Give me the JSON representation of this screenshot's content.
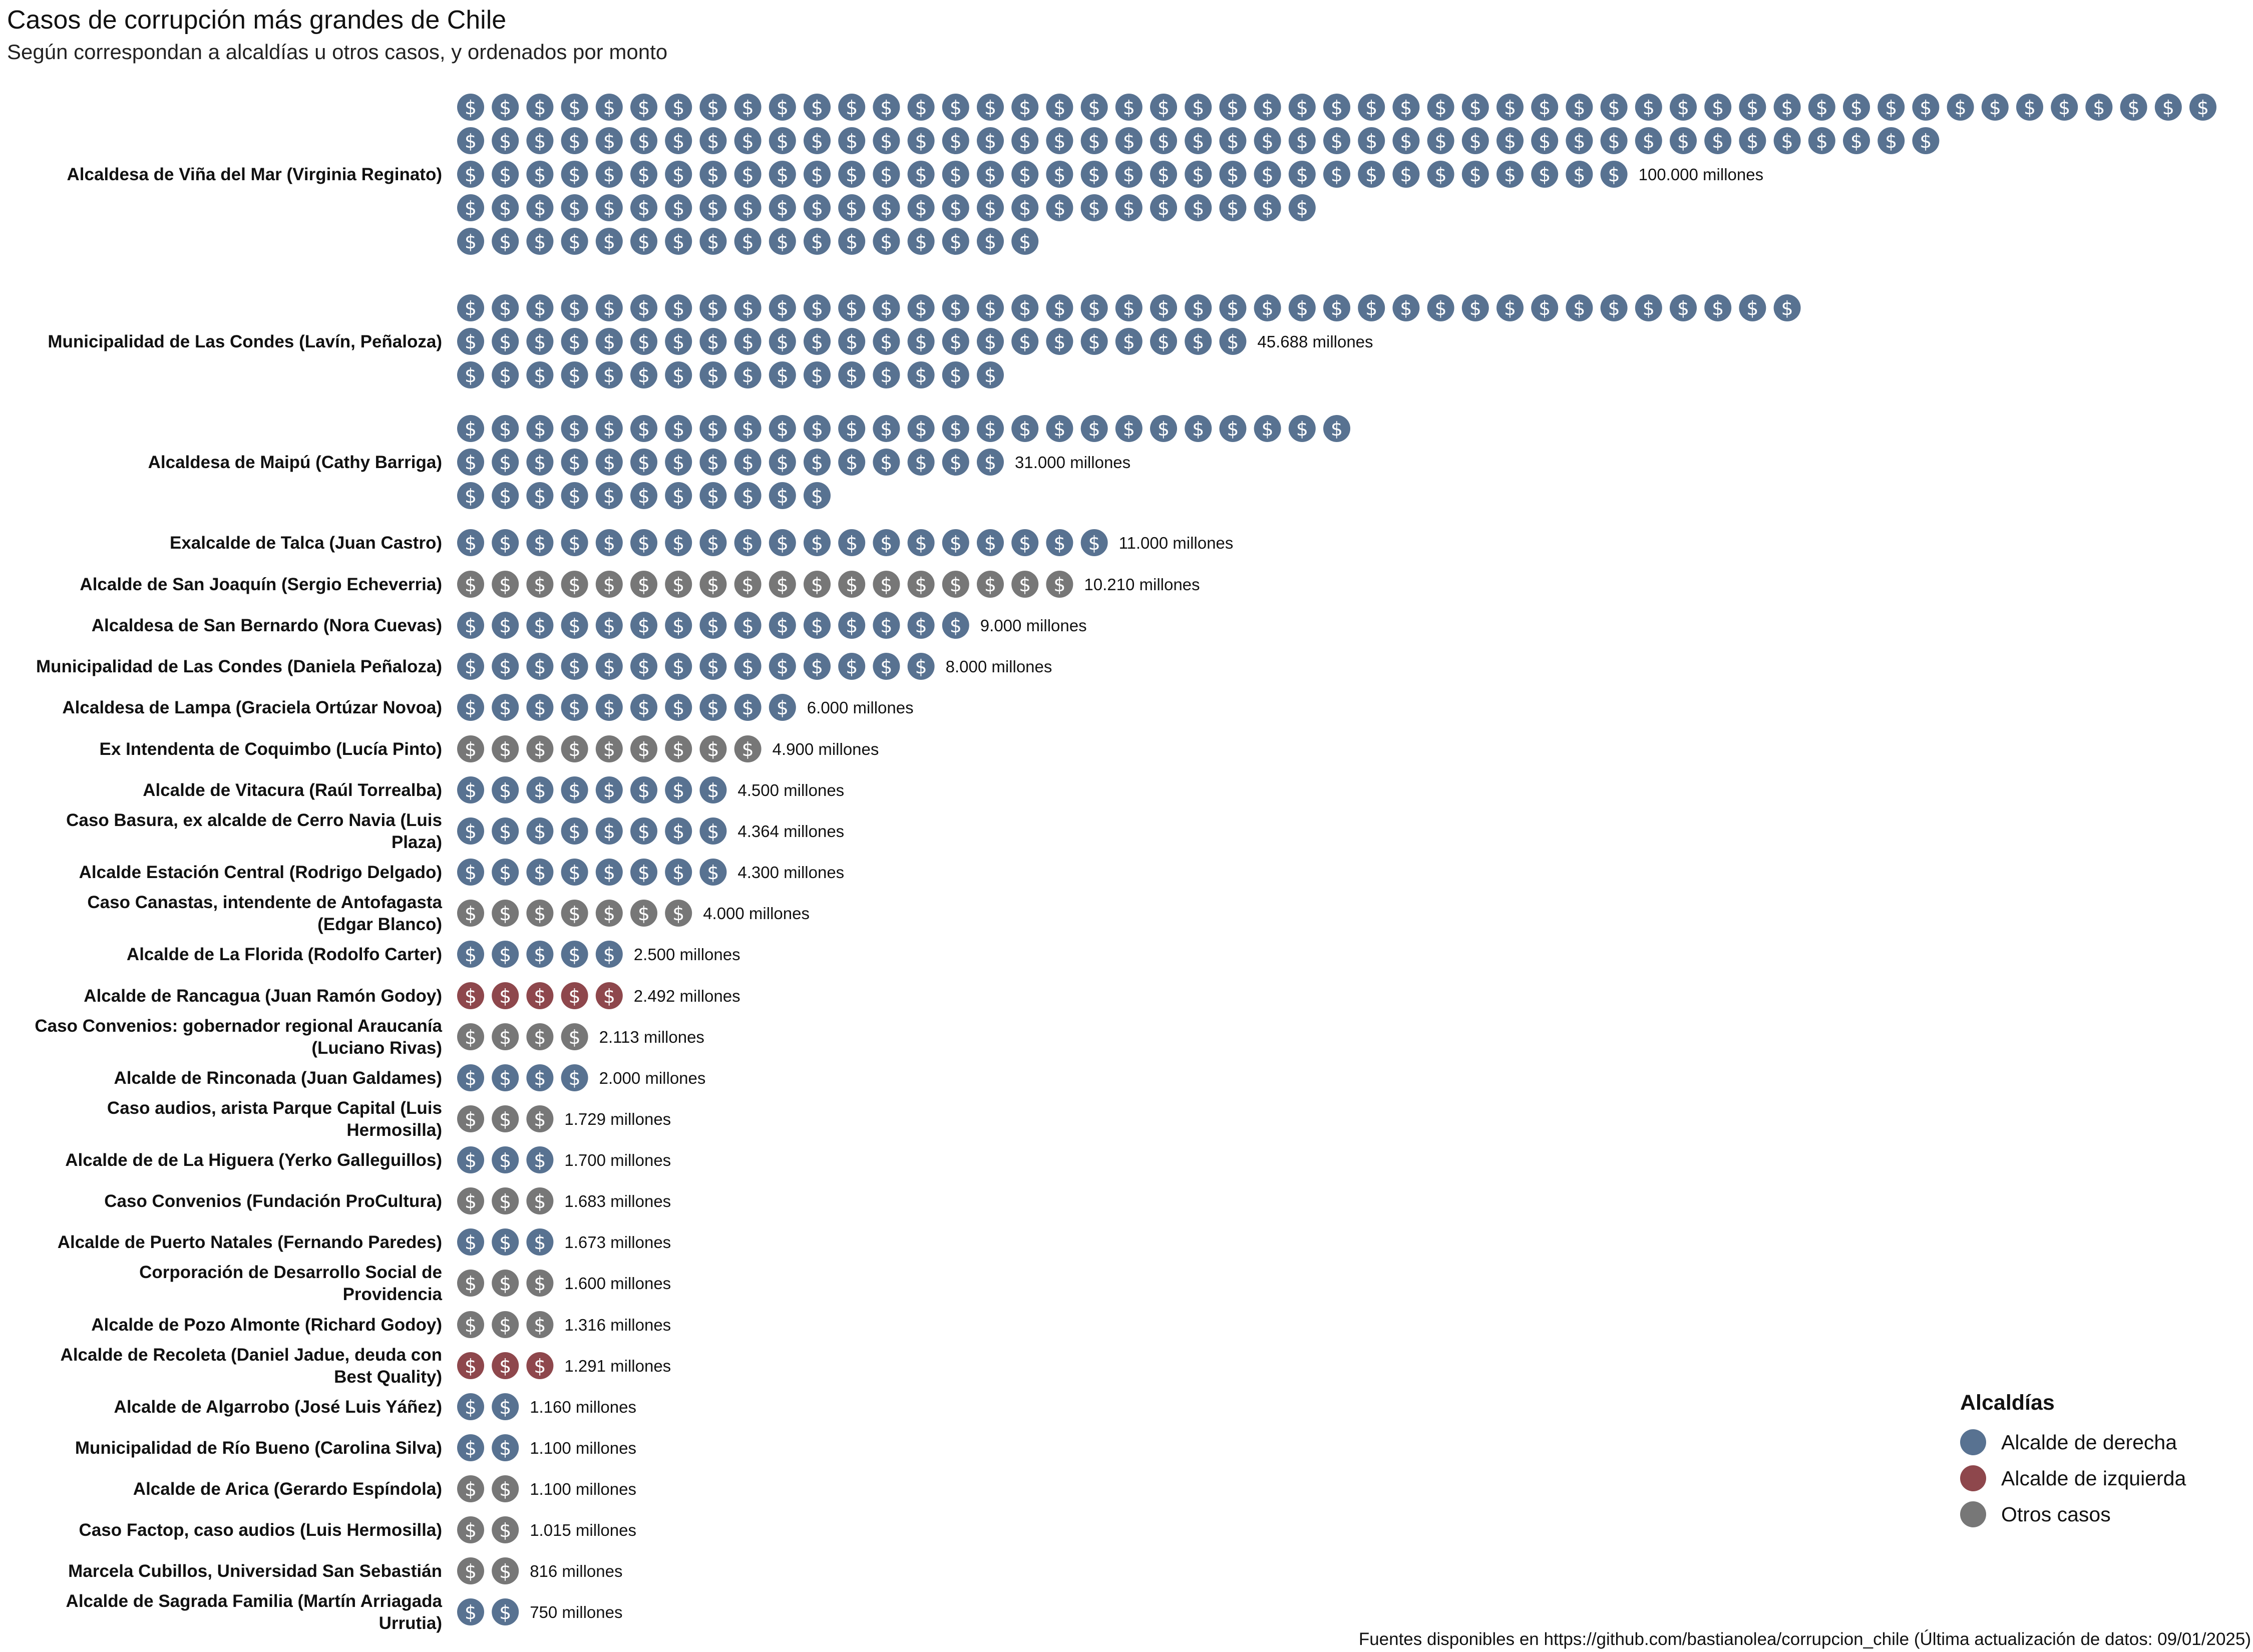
{
  "chart_data": {
    "type": "pictogram",
    "title": "Casos de corrupción más grandes de Chile",
    "subtitle": "Según correspondan a alcaldías u otros casos, y ordenados por monto",
    "caption": "Fuentes disponibles en https://github.com/bastianolea/corrupcion_chile (Última actualización de datos: 09/01/2025)",
    "legend": {
      "title": "Alcaldías",
      "position": "bottom-right",
      "entries": [
        {
          "key": "derecha",
          "label": "Alcalde de derecha",
          "color": "#587291"
        },
        {
          "key": "izquierda",
          "label": "Alcalde de izquierda",
          "color": "#8e474c"
        },
        {
          "key": "otros",
          "label": "Otros casos",
          "color": "#777777"
        }
      ]
    },
    "coin_symbol": "$",
    "rows": [
      {
        "label": "Alcaldesa de Viña del Mar (Virginia Reginato)",
        "value": 100000,
        "value_label": "100.000 millones",
        "group": "derecha",
        "coins": 204
      },
      {
        "label": "Municipalidad de Las Condes (Lavín, Peñaloza)",
        "value": 45688,
        "value_label": "45.688 millones",
        "group": "derecha",
        "coins": 94
      },
      {
        "label": "Alcaldesa de Maipú (Cathy Barriga)",
        "value": 31000,
        "value_label": "31.000 millones",
        "group": "derecha",
        "coins": 62
      },
      {
        "label": "Exalcalde de Talca (Juan Castro)",
        "value": 11000,
        "value_label": "11.000 millones",
        "group": "derecha",
        "coins": 19
      },
      {
        "label": "Alcalde de San Joaquín (Sergio Echeverria)",
        "value": 10210,
        "value_label": "10.210 millones",
        "group": "otros",
        "coins": 18
      },
      {
        "label": "Alcaldesa de San Bernardo (Nora Cuevas)",
        "value": 9000,
        "value_label": "9.000 millones",
        "group": "derecha",
        "coins": 15
      },
      {
        "label": "Municipalidad de Las Condes (Daniela Peñaloza)",
        "value": 8000,
        "value_label": "8.000 millones",
        "group": "derecha",
        "coins": 14
      },
      {
        "label": "Alcaldesa de Lampa (Graciela Ortúzar Novoa)",
        "value": 6000,
        "value_label": "6.000 millones",
        "group": "derecha",
        "coins": 10
      },
      {
        "label": "Ex Intendenta de Coquimbo (Lucía Pinto)",
        "value": 4900,
        "value_label": "4.900 millones",
        "group": "otros",
        "coins": 9
      },
      {
        "label": "Alcalde de Vitacura (Raúl Torrealba)",
        "value": 4500,
        "value_label": "4.500 millones",
        "group": "derecha",
        "coins": 8
      },
      {
        "label": "Caso Basura, ex alcalde de Cerro Navia (Luis Plaza)",
        "value": 4364,
        "value_label": "4.364 millones",
        "group": "derecha",
        "coins": 8
      },
      {
        "label": "Alcalde Estación Central (Rodrigo Delgado)",
        "value": 4300,
        "value_label": "4.300 millones",
        "group": "derecha",
        "coins": 8
      },
      {
        "label": "Caso Canastas, intendente de Antofagasta (Edgar Blanco)",
        "value": 4000,
        "value_label": "4.000 millones",
        "group": "otros",
        "coins": 7
      },
      {
        "label": "Alcalde de La Florida (Rodolfo Carter)",
        "value": 2500,
        "value_label": "2.500 millones",
        "group": "derecha",
        "coins": 5
      },
      {
        "label": "Alcalde de Rancagua (Juan Ramón Godoy)",
        "value": 2492,
        "value_label": "2.492 millones",
        "group": "izquierda",
        "coins": 5
      },
      {
        "label": "Caso Convenios: gobernador regional Araucanía (Luciano Rivas)",
        "value": 2113,
        "value_label": "2.113 millones",
        "group": "otros",
        "coins": 4
      },
      {
        "label": "Alcalde de Rinconada (Juan Galdames)",
        "value": 2000,
        "value_label": "2.000 millones",
        "group": "derecha",
        "coins": 4
      },
      {
        "label": "Caso audios, arista Parque Capital (Luis Hermosilla)",
        "value": 1729,
        "value_label": "1.729 millones",
        "group": "otros",
        "coins": 3
      },
      {
        "label": "Alcalde de de La Higuera (Yerko Galleguillos)",
        "value": 1700,
        "value_label": "1.700 millones",
        "group": "derecha",
        "coins": 3
      },
      {
        "label": "Caso Convenios (Fundación ProCultura)",
        "value": 1683,
        "value_label": "1.683 millones",
        "group": "otros",
        "coins": 3
      },
      {
        "label": "Alcalde de Puerto Natales (Fernando Paredes)",
        "value": 1673,
        "value_label": "1.673 millones",
        "group": "derecha",
        "coins": 3
      },
      {
        "label": "Corporación de Desarrollo Social de Providencia",
        "value": 1600,
        "value_label": "1.600 millones",
        "group": "otros",
        "coins": 3
      },
      {
        "label": "Alcalde de Pozo Almonte (Richard Godoy)",
        "value": 1316,
        "value_label": "1.316 millones",
        "group": "otros",
        "coins": 3
      },
      {
        "label": "Alcalde de Recoleta (Daniel Jadue, deuda con Best Quality)",
        "value": 1291,
        "value_label": "1.291 millones",
        "group": "izquierda",
        "coins": 3
      },
      {
        "label": "Alcalde de Algarrobo (José Luis Yáñez)",
        "value": 1160,
        "value_label": "1.160 millones",
        "group": "derecha",
        "coins": 2
      },
      {
        "label": "Municipalidad de Río Bueno (Carolina Silva)",
        "value": 1100,
        "value_label": "1.100 millones",
        "group": "derecha",
        "coins": 2
      },
      {
        "label": "Alcalde de Arica (Gerardo Espíndola)",
        "value": 1100,
        "value_label": "1.100 millones",
        "group": "otros",
        "coins": 2
      },
      {
        "label": "Caso Factop, caso audios (Luis Hermosilla)",
        "value": 1015,
        "value_label": "1.015 millones",
        "group": "otros",
        "coins": 2
      },
      {
        "label": "Marcela Cubillos, Universidad San Sebastián",
        "value": 816,
        "value_label": "816 millones",
        "group": "otros",
        "coins": 2
      },
      {
        "label": "Alcalde de Sagrada Familia (Martín Arriagada Urrutia)",
        "value": 750,
        "value_label": "750 millones",
        "group": "derecha",
        "coins": 2
      }
    ]
  }
}
